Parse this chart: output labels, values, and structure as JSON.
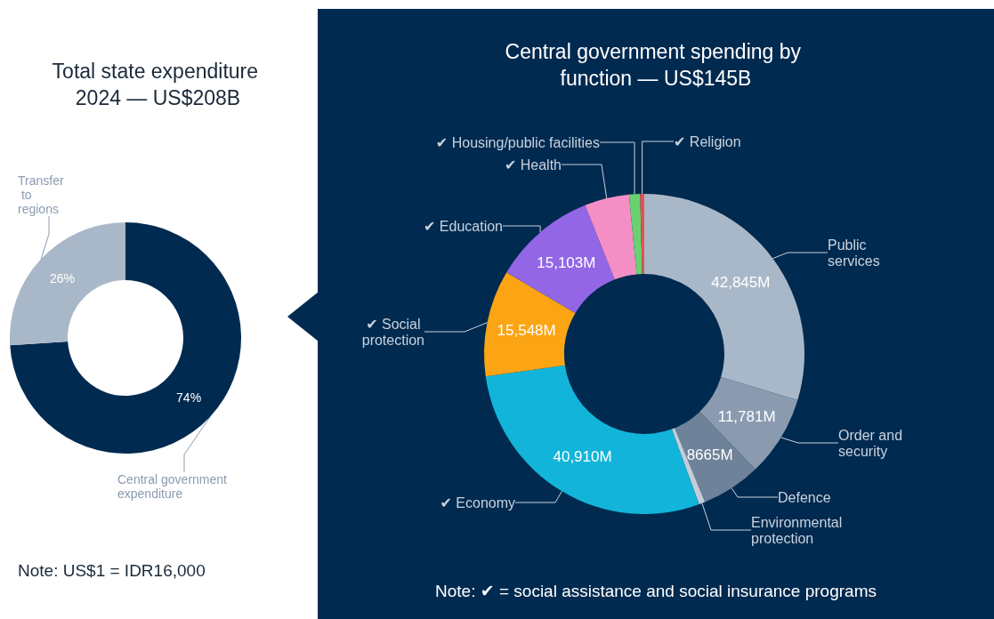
{
  "chart_data": [
    {
      "type": "donut",
      "title": "Total state expenditure 2024 — US$208B",
      "categories": [
        "Central government expenditure",
        "Transfer to regions"
      ],
      "values": [
        74,
        26
      ],
      "colors": [
        "#002a50",
        "#a9b8c8"
      ],
      "value_labels": [
        "74%",
        "26%"
      ],
      "annotations": [
        "Note: US$1 = IDR16,000"
      ]
    },
    {
      "type": "donut",
      "title": "Central government spending by function — US$145B",
      "categories": [
        "Public services",
        "Order and security",
        "Defence",
        "Environmental protection",
        "✔ Economy",
        "✔ Social protection",
        "✔ Education",
        "✔ Health",
        "✔ Housing/public facilities",
        "✔ Religion"
      ],
      "values": [
        42845,
        11781,
        8665,
        900,
        40910,
        15548,
        15103,
        6500,
        1600,
        600
      ],
      "colors": [
        "#a9b8c8",
        "#8a9bb0",
        "#6e8299",
        "#c4cdd8",
        "#12b5d9",
        "#fba414",
        "#9366e6",
        "#f48fc6",
        "#6ad171",
        "#e85050"
      ],
      "value_labels": [
        "42,845M",
        "11,781M",
        "8665M",
        null,
        "40,910M",
        "15,548M",
        "15,103M",
        null,
        null,
        null
      ],
      "annotations": [
        "Note: ✔ = social assistance and social insurance programs"
      ]
    }
  ]
}
